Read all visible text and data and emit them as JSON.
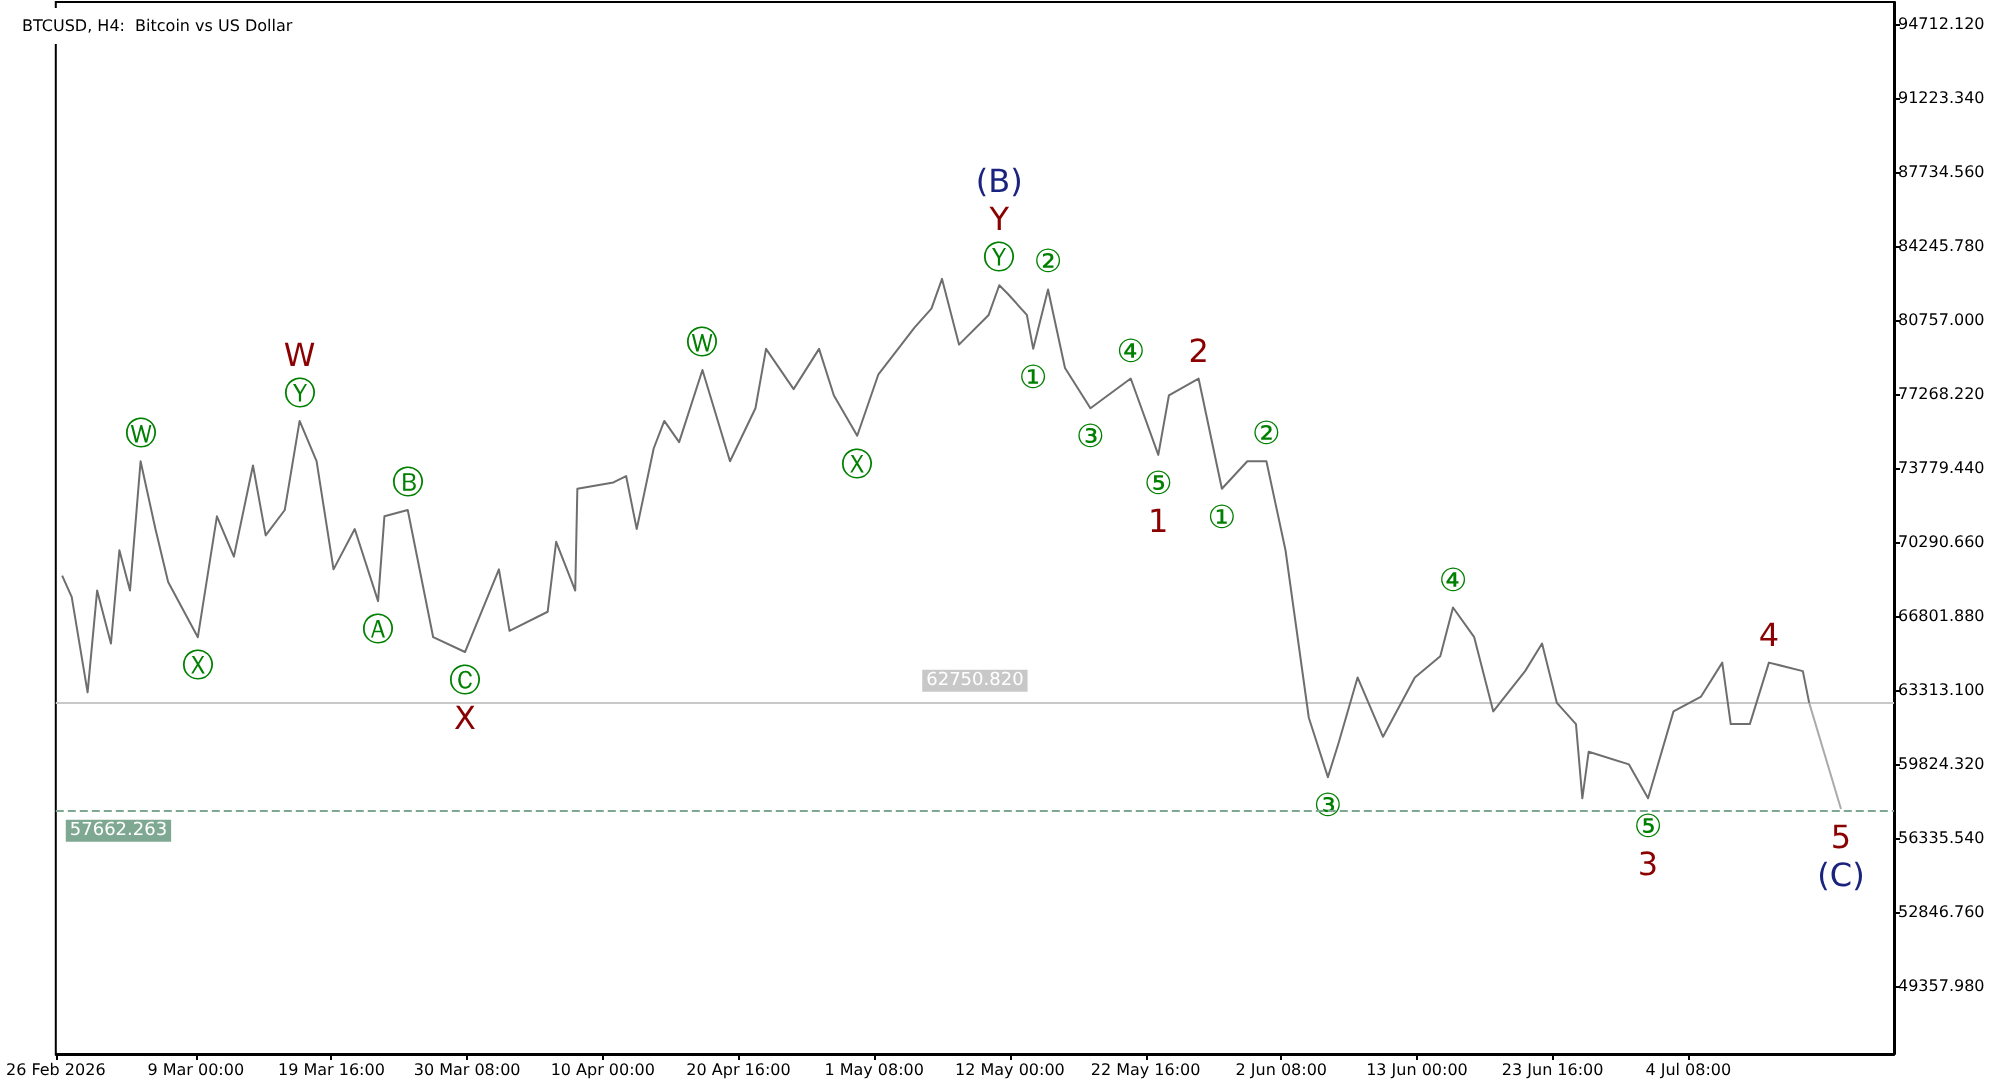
{
  "chart_data": {
    "type": "line",
    "title": "BTCUSD, H4:  Bitcoin vs US Dollar",
    "xlim": [
      "2026-02-26T00:00",
      "2026-07-20T12:00"
    ],
    "xticks": [
      {
        "value": "2026-02-26T00:00",
        "label": "26 Feb 2026"
      },
      {
        "value": "2026-03-09T00:00",
        "label": "9 Mar 00:00"
      },
      {
        "value": "2026-03-19T16:00",
        "label": "19 Mar 16:00"
      },
      {
        "value": "2026-03-30T08:00",
        "label": "30 Mar 08:00"
      },
      {
        "value": "2026-04-10T00:00",
        "label": "10 Apr 00:00"
      },
      {
        "value": "2026-04-20T16:00",
        "label": "20 Apr 16:00"
      },
      {
        "value": "2026-05-01T08:00",
        "label": "1 May 08:00"
      },
      {
        "value": "2026-05-12T00:00",
        "label": "12 May 00:00"
      },
      {
        "value": "2026-05-22T16:00",
        "label": "22 May 16:00"
      },
      {
        "value": "2026-06-02T08:00",
        "label": "2 Jun 08:00"
      },
      {
        "value": "2026-06-13T00:00",
        "label": "13 Jun 00:00"
      },
      {
        "value": "2026-06-23T16:00",
        "label": "23 Jun 16:00"
      },
      {
        "value": "2026-07-04T08:00",
        "label": "4 Jul 08:00"
      }
    ],
    "ylim": [
      46140,
      95760
    ],
    "yticks": [
      {
        "value": 94712.12,
        "label": "94712.120"
      },
      {
        "value": 91223.34,
        "label": "91223.340"
      },
      {
        "value": 87734.56,
        "label": "87734.560"
      },
      {
        "value": 84245.78,
        "label": "84245.780"
      },
      {
        "value": 80757,
        "label": "80757.000"
      },
      {
        "value": 77268.22,
        "label": "77268.220"
      },
      {
        "value": 73779.44,
        "label": "73779.440"
      },
      {
        "value": 70290.66,
        "label": "70290.660"
      },
      {
        "value": 66801.88,
        "label": "66801.880"
      },
      {
        "value": 63313.1,
        "label": "63313.100"
      },
      {
        "value": 59824.32,
        "label": "59824.320"
      },
      {
        "value": 56335.54,
        "label": "56335.540"
      },
      {
        "value": 52846.76,
        "label": "52846.760"
      },
      {
        "value": 49357.98,
        "label": "49357.980"
      }
    ],
    "grid": false,
    "marker": "none",
    "line_style": "solid",
    "series": [
      {
        "color": "#6e6e6e",
        "x": [
          "2026-02-26T12:00",
          "2026-02-27T06:00",
          "2026-02-28T12:00",
          "2026-03-01T06:00",
          "2026-03-02T08:00",
          "2026-03-03T00:00",
          "2026-03-03T20:00",
          "2026-03-04T16:00",
          "2026-03-05T20:00",
          "2026-03-06T20:00",
          "2026-03-09T04:00",
          "2026-03-10T16:00",
          "2026-03-12T00:00",
          "2026-03-13T12:00",
          "2026-03-14T12:00",
          "2026-03-16T00:00",
          "2026-03-17T04:00",
          "2026-03-18T12:00",
          "2026-03-19T20:00",
          "2026-03-21T12:00",
          "2026-03-23T08:00",
          "2026-03-23T20:00",
          "2026-03-25T16:00",
          "2026-03-27T16:00",
          "2026-03-30T04:00",
          "2026-04-01T20:00",
          "2026-04-02T16:00",
          "2026-04-05T16:00",
          "2026-04-06T08:00",
          "2026-04-07T20:00",
          "2026-04-08T00:00",
          "2026-04-10T20:00",
          "2026-04-11T20:00",
          "2026-04-12T16:00",
          "2026-04-14T00:00",
          "2026-04-14T20:00",
          "2026-04-16T00:00",
          "2026-04-17T20:00",
          "2026-04-20T00:00",
          "2026-04-22T00:00",
          "2026-04-22T20:00",
          "2026-04-25T00:00",
          "2026-04-27T00:00",
          "2026-04-28T04:00",
          "2026-04-30T00:00",
          "2026-05-01T16:00",
          "2026-05-04T12:00",
          "2026-05-05T20:00",
          "2026-05-06T16:00",
          "2026-05-08T00:00",
          "2026-05-10T08:00",
          "2026-05-11T04:00",
          "2026-05-11T20:00",
          "2026-05-13T08:00",
          "2026-05-13T20:00",
          "2026-05-15T00:00",
          "2026-05-16T08:00",
          "2026-05-18T08:00",
          "2026-05-21T12:00",
          "2026-05-23T16:00",
          "2026-05-24T12:00",
          "2026-05-26T20:00",
          "2026-05-28T16:00",
          "2026-05-30T16:00",
          "2026-06-01T04:00",
          "2026-06-02T16:00",
          "2026-06-04T12:00",
          "2026-06-06T00:00",
          "2026-06-06T20:00",
          "2026-06-08T08:00",
          "2026-06-10T08:00",
          "2026-06-12T20:00",
          "2026-06-14T20:00",
          "2026-06-15T20:00",
          "2026-06-17T12:00",
          "2026-06-19T00:00",
          "2026-06-21T12:00",
          "2026-06-22T20:00",
          "2026-06-24T00:00",
          "2026-06-25T12:00",
          "2026-06-26T00:00",
          "2026-06-26T12:00",
          "2026-06-29T16:00",
          "2026-07-01T04:00",
          "2026-07-03T04:00",
          "2026-07-05T08:00",
          "2026-07-07T00:00",
          "2026-07-07T16:00",
          "2026-07-09T04:00",
          "2026-07-10T16:00",
          "2026-07-13T08:00",
          "2026-07-13T20:00"
        ],
        "values": [
          68700,
          67700,
          63200,
          68000,
          65500,
          69900,
          68000,
          74100,
          70900,
          68400,
          65800,
          71500,
          69600,
          73900,
          70600,
          71800,
          76000,
          74100,
          69000,
          70900,
          67500,
          71500,
          71800,
          65800,
          65100,
          69000,
          66100,
          67000,
          70300,
          68000,
          72800,
          73100,
          73400,
          70900,
          74700,
          76000,
          75000,
          78400,
          74100,
          76600,
          79400,
          77500,
          79400,
          77200,
          75300,
          78200,
          80400,
          81300,
          82700,
          79600,
          81000,
          82400,
          82000,
          81000,
          79400,
          82200,
          78500,
          76600,
          78000,
          74400,
          77200,
          78000,
          72800,
          74100,
          74100,
          69900,
          62000,
          59200,
          60800,
          63900,
          61100,
          63900,
          64900,
          67200,
          65800,
          62300,
          64200,
          65500,
          62700,
          61700,
          58200,
          60400,
          59800,
          58200,
          62300,
          63000,
          64600,
          61700,
          61700,
          64600,
          64200,
          62700
        ]
      },
      {
        "color": "#aaaaaa",
        "x": [
          "2026-07-13T20:00",
          "2026-07-16T08:00"
        ],
        "values": [
          62700,
          57700
        ]
      }
    ],
    "ref_lines": [
      {
        "axis": "y",
        "value": 62750.82,
        "label": "62750.820",
        "color": "#c8c8c8",
        "line_style": "solid"
      },
      {
        "axis": "y",
        "value": 57662.263,
        "label": "57662.263",
        "color": "#7fa892",
        "line_style": "dashed"
      }
    ],
    "annotations": [
      {
        "text": "Ⓦ",
        "x": "2026-03-04T16:00",
        "y": 74100
      },
      {
        "text": "Ⓧ",
        "x": "2026-03-09T04:00",
        "y": 65800
      },
      {
        "text": "Ⓨ",
        "x": "2026-03-17T04:00",
        "y": 76000
      },
      {
        "text": "W",
        "x": "2026-03-17T04:00",
        "y": 76000
      },
      {
        "text": "Ⓑ",
        "x": "2026-03-25T16:00",
        "y": 71800
      },
      {
        "text": "Ⓐ",
        "x": "2026-03-23T08:00",
        "y": 67500
      },
      {
        "text": "Ⓒ",
        "x": "2026-03-30T04:00",
        "y": 65100
      },
      {
        "text": "X",
        "x": "2026-03-30T04:00",
        "y": 65100
      },
      {
        "text": "Ⓦ",
        "x": "2026-04-17T20:00",
        "y": 78400
      },
      {
        "text": "Ⓧ",
        "x": "2026-04-30T00:00",
        "y": 75300
      },
      {
        "text": "Ⓨ",
        "x": "2026-05-11T04:00",
        "y": 82400
      },
      {
        "text": "Y",
        "x": "2026-05-11T04:00",
        "y": 82400
      },
      {
        "text": "(B)",
        "x": "2026-05-11T04:00",
        "y": 82400
      },
      {
        "text": "②",
        "x": "2026-05-15T00:00",
        "y": 82200
      },
      {
        "text": "①",
        "x": "2026-05-13T20:00",
        "y": 79400
      },
      {
        "text": "④",
        "x": "2026-05-21T12:00",
        "y": 78000
      },
      {
        "text": "2",
        "x": "2026-05-26T20:00",
        "y": 78000
      },
      {
        "text": "③",
        "x": "2026-05-18T08:00",
        "y": 76600
      },
      {
        "text": "⑤",
        "x": "2026-05-23T16:00",
        "y": 74400
      },
      {
        "text": "1",
        "x": "2026-05-23T16:00",
        "y": 74400
      },
      {
        "text": "②",
        "x": "2026-06-01T04:00",
        "y": 74100
      },
      {
        "text": "①",
        "x": "2026-05-28T16:00",
        "y": 72800
      },
      {
        "text": "④",
        "x": "2026-06-15T20:00",
        "y": 67200
      },
      {
        "text": "③",
        "x": "2026-06-06T00:00",
        "y": 59200
      },
      {
        "text": "⑤",
        "x": "2026-07-01T04:00",
        "y": 58200
      },
      {
        "text": "3",
        "x": "2026-07-01T04:00",
        "y": 58200
      },
      {
        "text": "4",
        "x": "2026-07-10T16:00",
        "y": 64600
      },
      {
        "text": "5",
        "x": "2026-07-16T08:00",
        "y": 57700
      },
      {
        "text": "(C)",
        "x": "2026-07-16T08:00",
        "y": 57700
      }
    ]
  }
}
